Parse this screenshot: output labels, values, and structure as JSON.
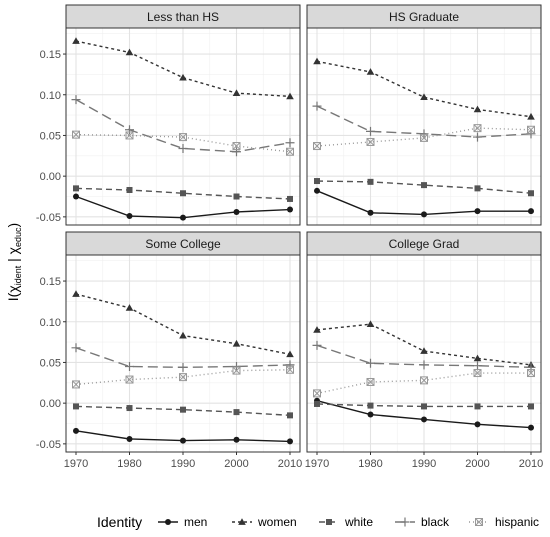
{
  "chart_data": {
    "type": "line",
    "x": [
      1970,
      1980,
      1990,
      2000,
      2010
    ],
    "x_ticks": [
      "1970",
      "1980",
      "1990",
      "2000",
      "2010"
    ],
    "ylim": [
      -0.06,
      0.182
    ],
    "y_ticks": [
      -0.05,
      0.0,
      0.05,
      0.1,
      0.15
    ],
    "y_tick_labels": [
      "-0.05",
      "0.00",
      "0.05",
      "0.10",
      "0.15"
    ],
    "grid": true,
    "legend_position": "bottom",
    "legend_title": "Identity",
    "ylabel": {
      "main": "I(",
      "sym1": "χ",
      "sub1": "ident",
      "bar": " | ",
      "sym2": "χ",
      "sub2": "educ",
      "close": ")"
    },
    "panels": [
      {
        "title": "Less than HS",
        "series": [
          {
            "name": "men",
            "values": [
              -0.025,
              -0.049,
              -0.051,
              -0.044,
              -0.041
            ]
          },
          {
            "name": "women",
            "values": [
              0.166,
              0.152,
              0.121,
              0.102,
              0.098
            ]
          },
          {
            "name": "white",
            "values": [
              -0.015,
              -0.017,
              -0.021,
              -0.025,
              -0.028
            ]
          },
          {
            "name": "black",
            "values": [
              0.094,
              0.057,
              0.034,
              0.03,
              0.041
            ]
          },
          {
            "name": "hispanic",
            "values": [
              0.051,
              0.05,
              0.048,
              0.037,
              0.03
            ]
          }
        ]
      },
      {
        "title": "HS Graduate",
        "series": [
          {
            "name": "men",
            "values": [
              -0.018,
              -0.045,
              -0.047,
              -0.043,
              -0.043
            ]
          },
          {
            "name": "women",
            "values": [
              0.141,
              0.128,
              0.097,
              0.082,
              0.073
            ]
          },
          {
            "name": "white",
            "values": [
              -0.006,
              -0.007,
              -0.011,
              -0.015,
              -0.021
            ]
          },
          {
            "name": "black",
            "values": [
              0.086,
              0.055,
              0.052,
              0.048,
              0.052
            ]
          },
          {
            "name": "hispanic",
            "values": [
              0.037,
              0.042,
              0.047,
              0.059,
              0.057
            ]
          }
        ]
      },
      {
        "title": "Some College",
        "series": [
          {
            "name": "men",
            "values": [
              -0.034,
              -0.044,
              -0.046,
              -0.045,
              -0.047
            ]
          },
          {
            "name": "women",
            "values": [
              0.134,
              0.117,
              0.083,
              0.073,
              0.06
            ]
          },
          {
            "name": "white",
            "values": [
              -0.004,
              -0.006,
              -0.008,
              -0.011,
              -0.015
            ]
          },
          {
            "name": "black",
            "values": [
              0.068,
              0.045,
              0.044,
              0.045,
              0.047
            ]
          },
          {
            "name": "hispanic",
            "values": [
              0.023,
              0.029,
              0.032,
              0.04,
              0.041
            ]
          }
        ]
      },
      {
        "title": "College Grad",
        "series": [
          {
            "name": "men",
            "values": [
              0.003,
              -0.014,
              -0.02,
              -0.026,
              -0.03
            ]
          },
          {
            "name": "women",
            "values": [
              0.09,
              0.097,
              0.064,
              0.055,
              0.047
            ]
          },
          {
            "name": "white",
            "values": [
              -0.001,
              -0.003,
              -0.004,
              -0.004,
              -0.004
            ]
          },
          {
            "name": "black",
            "values": [
              0.071,
              0.049,
              0.047,
              0.046,
              0.044
            ]
          },
          {
            "name": "hispanic",
            "values": [
              0.012,
              0.026,
              0.028,
              0.037,
              0.037
            ]
          }
        ]
      }
    ],
    "styles": {
      "men": {
        "color": "#1a1a1a",
        "dash": "",
        "marker": "circle"
      },
      "women": {
        "color": "#333333",
        "dash": "3,3",
        "marker": "triangle"
      },
      "white": {
        "color": "#555555",
        "dash": "6,4",
        "marker": "square"
      },
      "black": {
        "color": "#777777",
        "dash": "10,5",
        "marker": "plus"
      },
      "hispanic": {
        "color": "#999999",
        "dash": "1,3",
        "marker": "boxcross"
      }
    }
  }
}
